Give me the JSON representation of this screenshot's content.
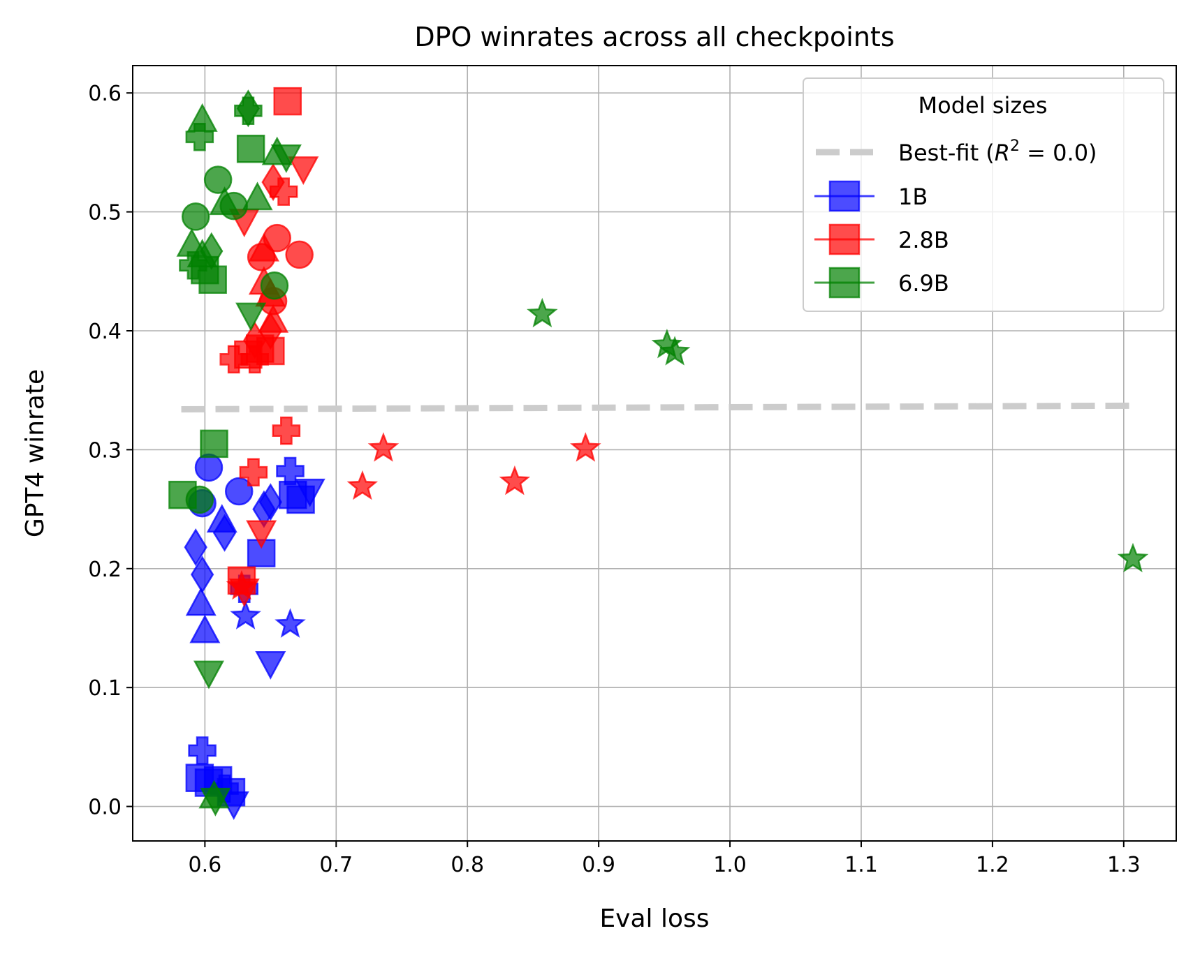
{
  "chart_data": {
    "type": "scatter",
    "title": "DPO winrates across all checkpoints",
    "xlabel": "Eval loss",
    "ylabel": "GPT4 winrate",
    "xlim": [
      0.545,
      1.34
    ],
    "ylim": [
      -0.029,
      0.623
    ],
    "xticks": [
      0.6,
      0.7,
      0.8,
      0.9,
      1.0,
      1.1,
      1.2,
      1.3
    ],
    "xtick_labels": [
      "0.6",
      "0.7",
      "0.8",
      "0.9",
      "1.0",
      "1.1",
      "1.2",
      "1.3"
    ],
    "yticks": [
      0.0,
      0.1,
      0.2,
      0.3,
      0.4,
      0.5,
      0.6
    ],
    "ytick_labels": [
      "0.0",
      "0.1",
      "0.2",
      "0.3",
      "0.4",
      "0.5",
      "0.6"
    ],
    "grid": true,
    "legend": {
      "placement": "top-right",
      "title": "Model sizes",
      "fit_label_prefix": "Best-fit (",
      "fit_label_math": "R",
      "fit_label_sup": "2",
      "fit_label_suffix": " = 0.0)"
    },
    "fit_line": {
      "x": [
        0.582,
        1.308
      ],
      "y": [
        0.334,
        0.337
      ],
      "color": "#cccccc"
    },
    "series": [
      {
        "name": "1B",
        "color": "#0000ff",
        "points": [
          [
            0.603,
            0.285,
            "circle"
          ],
          [
            0.598,
            0.255,
            "circle"
          ],
          [
            0.626,
            0.265,
            "circle"
          ],
          [
            0.665,
            0.282,
            "plus"
          ],
          [
            0.667,
            0.262,
            "square"
          ],
          [
            0.673,
            0.258,
            "square"
          ],
          [
            0.68,
            0.266,
            "triangle-down"
          ],
          [
            0.65,
            0.256,
            "diamond"
          ],
          [
            0.645,
            0.25,
            "diamond"
          ],
          [
            0.613,
            0.24,
            "triangle-up"
          ],
          [
            0.615,
            0.23,
            "diamond"
          ],
          [
            0.643,
            0.213,
            "square"
          ],
          [
            0.593,
            0.218,
            "diamond"
          ],
          [
            0.598,
            0.195,
            "diamond"
          ],
          [
            0.597,
            0.17,
            "triangle-up"
          ],
          [
            0.6,
            0.147,
            "triangle-up"
          ],
          [
            0.63,
            0.183,
            "plus"
          ],
          [
            0.631,
            0.16,
            "star"
          ],
          [
            0.665,
            0.153,
            "star"
          ],
          [
            0.65,
            0.121,
            "triangle-down"
          ],
          [
            0.598,
            0.047,
            "plus"
          ],
          [
            0.596,
            0.024,
            "square"
          ],
          [
            0.603,
            0.02,
            "square"
          ],
          [
            0.61,
            0.022,
            "square"
          ],
          [
            0.615,
            0.015,
            "plus"
          ],
          [
            0.62,
            0.012,
            "square"
          ],
          [
            0.622,
            0.003,
            "triangle-down"
          ]
        ]
      },
      {
        "name": "2.8B",
        "color": "#ff0000",
        "points": [
          [
            0.663,
            0.593,
            "square"
          ],
          [
            0.675,
            0.537,
            "triangle-down"
          ],
          [
            0.652,
            0.525,
            "diamond"
          ],
          [
            0.66,
            0.517,
            "plus"
          ],
          [
            0.63,
            0.493,
            "triangle-down"
          ],
          [
            0.655,
            0.478,
            "circle"
          ],
          [
            0.645,
            0.468,
            "triangle-up"
          ],
          [
            0.643,
            0.462,
            "circle"
          ],
          [
            0.672,
            0.464,
            "circle"
          ],
          [
            0.645,
            0.44,
            "triangle-up"
          ],
          [
            0.65,
            0.43,
            "triangle-up"
          ],
          [
            0.652,
            0.425,
            "circle"
          ],
          [
            0.652,
            0.408,
            "triangle-up"
          ],
          [
            0.65,
            0.4,
            "diamond"
          ],
          [
            0.638,
            0.392,
            "diamond"
          ],
          [
            0.642,
            0.385,
            "square"
          ],
          [
            0.65,
            0.383,
            "square"
          ],
          [
            0.633,
            0.38,
            "square"
          ],
          [
            0.638,
            0.376,
            "plus"
          ],
          [
            0.622,
            0.376,
            "plus"
          ],
          [
            0.662,
            0.316,
            "plus"
          ],
          [
            0.637,
            0.281,
            "plus"
          ],
          [
            0.643,
            0.231,
            "triangle-down"
          ],
          [
            0.628,
            0.19,
            "square"
          ],
          [
            0.63,
            0.182,
            "triangle-down"
          ],
          [
            0.628,
            0.185,
            "star"
          ],
          [
            0.736,
            0.301,
            "star"
          ],
          [
            0.72,
            0.269,
            "star"
          ],
          [
            0.836,
            0.273,
            "star"
          ],
          [
            0.89,
            0.301,
            "star"
          ]
        ]
      },
      {
        "name": "6.9B",
        "color": "#008000",
        "points": [
          [
            0.598,
            0.577,
            "triangle-up"
          ],
          [
            0.596,
            0.563,
            "plus"
          ],
          [
            0.633,
            0.587,
            "diamond"
          ],
          [
            0.633,
            0.585,
            "plus"
          ],
          [
            0.635,
            0.553,
            "square"
          ],
          [
            0.655,
            0.549,
            "triangle-up"
          ],
          [
            0.662,
            0.547,
            "triangle-down"
          ],
          [
            0.61,
            0.527,
            "circle"
          ],
          [
            0.615,
            0.507,
            "triangle-up"
          ],
          [
            0.622,
            0.505,
            "circle"
          ],
          [
            0.64,
            0.511,
            "triangle-up"
          ],
          [
            0.593,
            0.496,
            "circle"
          ],
          [
            0.59,
            0.472,
            "triangle-up"
          ],
          [
            0.605,
            0.467,
            "diamond"
          ],
          [
            0.598,
            0.463,
            "triangle-up"
          ],
          [
            0.591,
            0.455,
            "plus"
          ],
          [
            0.6,
            0.451,
            "square"
          ],
          [
            0.606,
            0.443,
            "square"
          ],
          [
            0.653,
            0.438,
            "circle"
          ],
          [
            0.635,
            0.414,
            "triangle-down"
          ],
          [
            0.857,
            0.414,
            "star"
          ],
          [
            0.952,
            0.388,
            "star"
          ],
          [
            0.958,
            0.382,
            "star"
          ],
          [
            0.607,
            0.305,
            "square"
          ],
          [
            0.583,
            0.262,
            "square"
          ],
          [
            0.596,
            0.258,
            "circle"
          ],
          [
            0.603,
            0.113,
            "triangle-down"
          ],
          [
            0.607,
            0.008,
            "triangle-up"
          ],
          [
            0.608,
            0.006,
            "triangle-down"
          ],
          [
            1.307,
            0.208,
            "star"
          ]
        ]
      }
    ]
  }
}
